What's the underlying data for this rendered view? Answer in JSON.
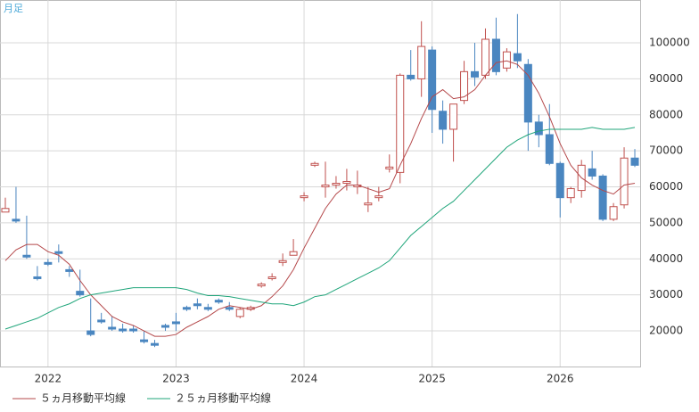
{
  "chart_data": {
    "type": "candlestick",
    "label": "月足",
    "categories": [
      null,
      null,
      null,
      null,
      "2022",
      null,
      null,
      null,
      null,
      null,
      null,
      null,
      null,
      null,
      null,
      null,
      "2023",
      null,
      null,
      null,
      null,
      null,
      null,
      null,
      null,
      null,
      null,
      null,
      "2024",
      null,
      null,
      null,
      null,
      null,
      null,
      null,
      null,
      null,
      null,
      null,
      "2025",
      null,
      null,
      null,
      null,
      null,
      null,
      null,
      null,
      null,
      null,
      null,
      "2026",
      null,
      null,
      null,
      null,
      null,
      null,
      null
    ],
    "candles": {
      "up_color": "#c0504d",
      "down_color": "#4a86c0",
      "open": [
        53000,
        51000,
        41000,
        35000,
        39000,
        42000,
        37000,
        31000,
        20000,
        23000,
        21000,
        20500,
        20500,
        17500,
        16500,
        21500,
        22500,
        26500,
        27500,
        26500,
        28500,
        26500,
        24000,
        26000,
        32500,
        34500,
        39000,
        41000,
        57000,
        66000,
        60000,
        60500,
        61000,
        60000,
        55000,
        57000,
        65000,
        64000,
        91000,
        90000,
        98000,
        81000,
        76000,
        84000,
        92000,
        91000,
        101000,
        93000,
        97000,
        94000,
        78000,
        74500,
        66500,
        57000,
        59000,
        65000,
        63000,
        51000,
        55000,
        68000
      ],
      "high": [
        57000,
        60000,
        52000,
        38000,
        40000,
        44000,
        38000,
        37000,
        29000,
        25000,
        24000,
        22000,
        21500,
        20000,
        17500,
        22000,
        25000,
        27000,
        29000,
        27500,
        29000,
        28000,
        26500,
        27000,
        33500,
        36000,
        41500,
        45500,
        58500,
        67000,
        67000,
        63000,
        65000,
        64500,
        60000,
        60000,
        69000,
        91500,
        98000,
        106000,
        99000,
        84000,
        83000,
        95000,
        100000,
        104000,
        107000,
        98500,
        108000,
        95500,
        80000,
        83000,
        67000,
        60000,
        67500,
        70000,
        63500,
        55500,
        71000,
        70500
      ],
      "low": [
        53000,
        50000,
        40000,
        34000,
        38000,
        39000,
        35000,
        29500,
        18500,
        22000,
        20000,
        19500,
        19500,
        16500,
        15500,
        20000,
        20000,
        25500,
        26000,
        25500,
        27500,
        25500,
        23500,
        25500,
        32000,
        34000,
        38000,
        41000,
        56000,
        65500,
        57000,
        59500,
        59000,
        58000,
        53000,
        56000,
        64000,
        61000,
        89500,
        85000,
        75000,
        72000,
        67000,
        83000,
        88000,
        90000,
        91000,
        92000,
        93000,
        70000,
        71000,
        66000,
        51500,
        55500,
        57000,
        62000,
        50500,
        50500,
        54000,
        65500
      ],
      "close": [
        54000,
        50500,
        40500,
        34500,
        38500,
        41500,
        36500,
        30000,
        19000,
        22500,
        20500,
        20000,
        20000,
        17000,
        16000,
        21000,
        22000,
        26000,
        27000,
        26000,
        28000,
        26000,
        26000,
        26500,
        33000,
        35000,
        39500,
        42000,
        57500,
        66500,
        60500,
        61000,
        61500,
        60500,
        55500,
        57500,
        65500,
        91000,
        90000,
        99000,
        81500,
        76000,
        83000,
        92000,
        90500,
        101000,
        92000,
        97500,
        95000,
        78000,
        74500,
        66500,
        57000,
        59500,
        66000,
        63000,
        51000,
        54500,
        68000,
        66000
      ]
    },
    "series": [
      {
        "name": "５ヵ月移動平均線",
        "color": "#b5494b",
        "values": [
          39500,
          42500,
          44000,
          44000,
          42000,
          41000,
          38500,
          34000,
          30000,
          27000,
          24000,
          22500,
          21500,
          20000,
          18500,
          18500,
          19000,
          21000,
          22500,
          24000,
          26000,
          27000,
          26500,
          26000,
          27000,
          29500,
          32500,
          37000,
          43000,
          48500,
          54000,
          58000,
          60500,
          60500,
          59500,
          58500,
          59500,
          66000,
          72000,
          79000,
          85000,
          87000,
          84500,
          85000,
          87000,
          91000,
          94500,
          95000,
          94000,
          91000,
          86000,
          79500,
          72000,
          66000,
          62500,
          60500,
          59000,
          58000,
          60500,
          61000
        ]
      },
      {
        "name": "２５ヵ月移動平均線",
        "color": "#1fa57a",
        "values": [
          20500,
          21500,
          22500,
          23500,
          25000,
          26500,
          27500,
          29000,
          30000,
          30500,
          31000,
          31500,
          32000,
          32000,
          32000,
          32000,
          32000,
          31500,
          30500,
          29800,
          29800,
          29500,
          29000,
          28500,
          28000,
          27500,
          27500,
          27000,
          28000,
          29500,
          30000,
          31500,
          33000,
          34500,
          36000,
          37500,
          39500,
          43000,
          46500,
          49000,
          51500,
          54000,
          56000,
          59000,
          62000,
          65000,
          68000,
          71000,
          73000,
          74500,
          75500,
          76000,
          76000,
          76000,
          76000,
          76500,
          76000,
          76000,
          76000,
          76500
        ]
      }
    ],
    "ylim": [
      10100,
      111900
    ],
    "yticks": [
      20000,
      30000,
      40000,
      50000,
      60000,
      70000,
      80000,
      90000,
      100000
    ],
    "grid": true
  }
}
